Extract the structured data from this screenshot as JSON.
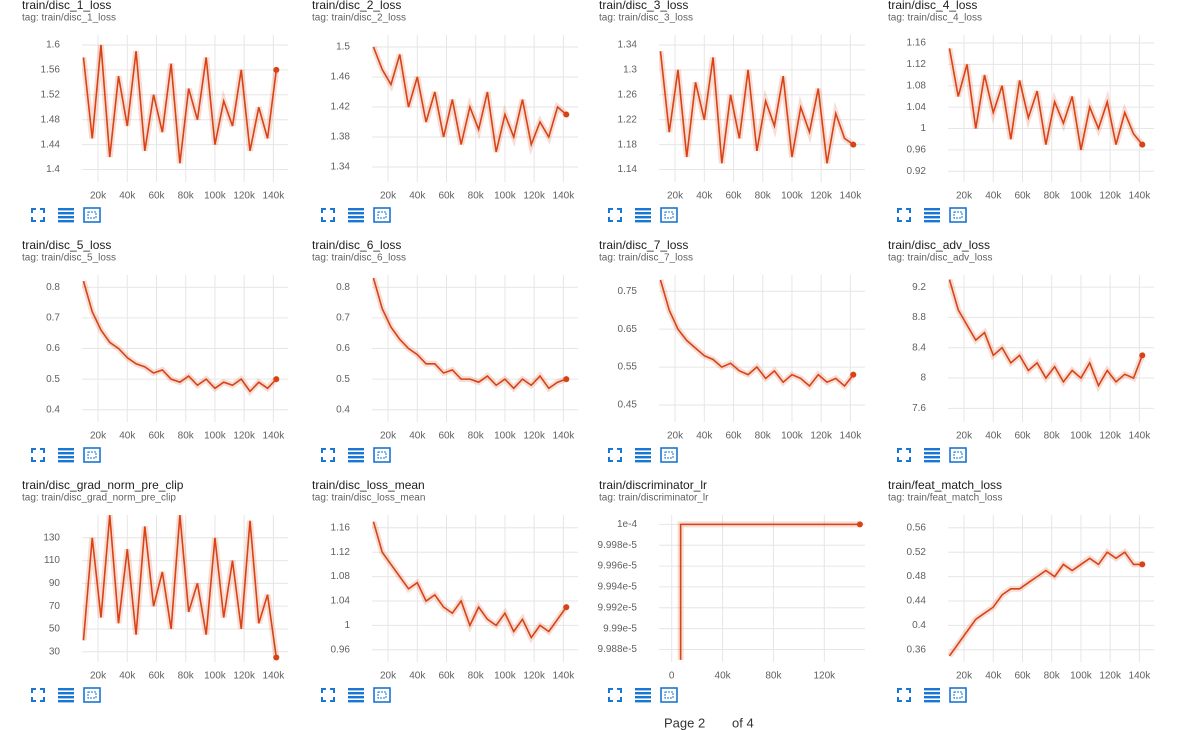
{
  "chart_data": [
    {
      "type": "line",
      "title": "train/disc_1_loss",
      "subtitle": "tag: train/disc_1_loss",
      "color": "#d84315",
      "grid": true,
      "xlim": [
        9000,
        150000
      ],
      "ylim": [
        1.38,
        1.616
      ],
      "xticks": [
        {
          "value": 20000,
          "label": "20k"
        },
        {
          "value": 40000,
          "label": "40k"
        },
        {
          "value": 60000,
          "label": "60k"
        },
        {
          "value": 80000,
          "label": "80k"
        },
        {
          "value": 100000,
          "label": "100k"
        },
        {
          "value": 120000,
          "label": "120k"
        },
        {
          "value": 140000,
          "label": "140k"
        }
      ],
      "yticks": [
        1.4,
        1.44,
        1.48,
        1.52,
        1.56,
        1.6
      ],
      "x": [
        10000,
        16000,
        22000,
        28000,
        34000,
        40000,
        46000,
        52000,
        58000,
        64000,
        70000,
        76000,
        82000,
        88000,
        94000,
        100000,
        106000,
        112000,
        118000,
        124000,
        130000,
        136000,
        142000
      ],
      "values": [
        1.58,
        1.45,
        1.6,
        1.42,
        1.55,
        1.47,
        1.59,
        1.43,
        1.52,
        1.46,
        1.57,
        1.41,
        1.53,
        1.48,
        1.58,
        1.44,
        1.51,
        1.47,
        1.56,
        1.43,
        1.5,
        1.45,
        1.56
      ]
    },
    {
      "type": "line",
      "title": "train/disc_2_loss",
      "subtitle": "tag: train/disc_2_loss",
      "color": "#d84315",
      "grid": true,
      "xlim": [
        9000,
        150000
      ],
      "ylim": [
        1.32,
        1.516
      ],
      "xticks": [
        {
          "value": 20000,
          "label": "20k"
        },
        {
          "value": 40000,
          "label": "40k"
        },
        {
          "value": 60000,
          "label": "60k"
        },
        {
          "value": 80000,
          "label": "80k"
        },
        {
          "value": 100000,
          "label": "100k"
        },
        {
          "value": 120000,
          "label": "120k"
        },
        {
          "value": 140000,
          "label": "140k"
        }
      ],
      "yticks": [
        1.34,
        1.38,
        1.42,
        1.46,
        1.5
      ],
      "x": [
        10000,
        16000,
        22000,
        28000,
        34000,
        40000,
        46000,
        52000,
        58000,
        64000,
        70000,
        76000,
        82000,
        88000,
        94000,
        100000,
        106000,
        112000,
        118000,
        124000,
        130000,
        136000,
        142000
      ],
      "values": [
        1.5,
        1.47,
        1.45,
        1.49,
        1.42,
        1.46,
        1.4,
        1.44,
        1.38,
        1.43,
        1.37,
        1.42,
        1.39,
        1.44,
        1.36,
        1.41,
        1.38,
        1.43,
        1.37,
        1.4,
        1.38,
        1.42,
        1.41
      ]
    },
    {
      "type": "line",
      "title": "train/disc_3_loss",
      "subtitle": "tag: train/disc_3_loss",
      "color": "#d84315",
      "grid": true,
      "xlim": [
        9000,
        150000
      ],
      "ylim": [
        1.12,
        1.356
      ],
      "xticks": [
        {
          "value": 20000,
          "label": "20k"
        },
        {
          "value": 40000,
          "label": "40k"
        },
        {
          "value": 60000,
          "label": "60k"
        },
        {
          "value": 80000,
          "label": "80k"
        },
        {
          "value": 100000,
          "label": "100k"
        },
        {
          "value": 120000,
          "label": "120k"
        },
        {
          "value": 140000,
          "label": "140k"
        }
      ],
      "yticks": [
        1.14,
        1.18,
        1.22,
        1.26,
        1.3,
        1.34
      ],
      "x": [
        10000,
        16000,
        22000,
        28000,
        34000,
        40000,
        46000,
        52000,
        58000,
        64000,
        70000,
        76000,
        82000,
        88000,
        94000,
        100000,
        106000,
        112000,
        118000,
        124000,
        130000,
        136000,
        142000
      ],
      "values": [
        1.33,
        1.2,
        1.3,
        1.16,
        1.28,
        1.22,
        1.32,
        1.15,
        1.26,
        1.19,
        1.3,
        1.17,
        1.25,
        1.21,
        1.29,
        1.16,
        1.24,
        1.2,
        1.27,
        1.15,
        1.23,
        1.19,
        1.18
      ]
    },
    {
      "type": "line",
      "title": "train/disc_4_loss",
      "subtitle": "tag: train/disc_4_loss",
      "color": "#d84315",
      "grid": true,
      "xlim": [
        9000,
        150000
      ],
      "ylim": [
        0.9,
        1.175
      ],
      "xticks": [
        {
          "value": 20000,
          "label": "20k"
        },
        {
          "value": 40000,
          "label": "40k"
        },
        {
          "value": 60000,
          "label": "60k"
        },
        {
          "value": 80000,
          "label": "80k"
        },
        {
          "value": 100000,
          "label": "100k"
        },
        {
          "value": 120000,
          "label": "120k"
        },
        {
          "value": 140000,
          "label": "140k"
        }
      ],
      "yticks": [
        0.92,
        0.96,
        1,
        1.04,
        1.08,
        1.12,
        1.16
      ],
      "x": [
        10000,
        16000,
        22000,
        28000,
        34000,
        40000,
        46000,
        52000,
        58000,
        64000,
        70000,
        76000,
        82000,
        88000,
        94000,
        100000,
        106000,
        112000,
        118000,
        124000,
        130000,
        136000,
        142000
      ],
      "values": [
        1.15,
        1.06,
        1.12,
        1.0,
        1.1,
        1.03,
        1.08,
        0.98,
        1.09,
        1.02,
        1.07,
        0.97,
        1.05,
        1.01,
        1.06,
        0.96,
        1.04,
        1.0,
        1.05,
        0.97,
        1.03,
        0.99,
        0.97
      ]
    },
    {
      "type": "line",
      "title": "train/disc_5_loss",
      "subtitle": "tag: train/disc_5_loss",
      "color": "#d84315",
      "grid": true,
      "xlim": [
        9000,
        150000
      ],
      "ylim": [
        0.36,
        0.84
      ],
      "xticks": [
        {
          "value": 20000,
          "label": "20k"
        },
        {
          "value": 40000,
          "label": "40k"
        },
        {
          "value": 60000,
          "label": "60k"
        },
        {
          "value": 80000,
          "label": "80k"
        },
        {
          "value": 100000,
          "label": "100k"
        },
        {
          "value": 120000,
          "label": "120k"
        },
        {
          "value": 140000,
          "label": "140k"
        }
      ],
      "yticks": [
        0.4,
        0.5,
        0.6,
        0.7,
        0.8
      ],
      "x": [
        10000,
        16000,
        22000,
        28000,
        34000,
        40000,
        46000,
        52000,
        58000,
        64000,
        70000,
        76000,
        82000,
        88000,
        94000,
        100000,
        106000,
        112000,
        118000,
        124000,
        130000,
        136000,
        142000
      ],
      "values": [
        0.82,
        0.72,
        0.66,
        0.62,
        0.6,
        0.57,
        0.55,
        0.54,
        0.52,
        0.53,
        0.5,
        0.49,
        0.51,
        0.48,
        0.5,
        0.47,
        0.49,
        0.48,
        0.5,
        0.46,
        0.49,
        0.47,
        0.5
      ]
    },
    {
      "type": "line",
      "title": "train/disc_6_loss",
      "subtitle": "tag: train/disc_6_loss",
      "color": "#d84315",
      "grid": true,
      "xlim": [
        9000,
        150000
      ],
      "ylim": [
        0.36,
        0.84
      ],
      "xticks": [
        {
          "value": 20000,
          "label": "20k"
        },
        {
          "value": 40000,
          "label": "40k"
        },
        {
          "value": 60000,
          "label": "60k"
        },
        {
          "value": 80000,
          "label": "80k"
        },
        {
          "value": 100000,
          "label": "100k"
        },
        {
          "value": 120000,
          "label": "120k"
        },
        {
          "value": 140000,
          "label": "140k"
        }
      ],
      "yticks": [
        0.4,
        0.5,
        0.6,
        0.7,
        0.8
      ],
      "x": [
        10000,
        16000,
        22000,
        28000,
        34000,
        40000,
        46000,
        52000,
        58000,
        64000,
        70000,
        76000,
        82000,
        88000,
        94000,
        100000,
        106000,
        112000,
        118000,
        124000,
        130000,
        136000,
        142000
      ],
      "values": [
        0.83,
        0.73,
        0.67,
        0.63,
        0.6,
        0.58,
        0.55,
        0.55,
        0.52,
        0.53,
        0.5,
        0.5,
        0.49,
        0.51,
        0.48,
        0.5,
        0.47,
        0.5,
        0.48,
        0.51,
        0.47,
        0.49,
        0.5
      ]
    },
    {
      "type": "line",
      "title": "train/disc_7_loss",
      "subtitle": "tag: train/disc_7_loss",
      "color": "#d84315",
      "grid": true,
      "xlim": [
        9000,
        150000
      ],
      "ylim": [
        0.405,
        0.793
      ],
      "xticks": [
        {
          "value": 20000,
          "label": "20k"
        },
        {
          "value": 40000,
          "label": "40k"
        },
        {
          "value": 60000,
          "label": "60k"
        },
        {
          "value": 80000,
          "label": "80k"
        },
        {
          "value": 100000,
          "label": "100k"
        },
        {
          "value": 120000,
          "label": "120k"
        },
        {
          "value": 140000,
          "label": "140k"
        }
      ],
      "yticks": [
        0.45,
        0.55,
        0.65,
        0.75
      ],
      "x": [
        10000,
        16000,
        22000,
        28000,
        34000,
        40000,
        46000,
        52000,
        58000,
        64000,
        70000,
        76000,
        82000,
        88000,
        94000,
        100000,
        106000,
        112000,
        118000,
        124000,
        130000,
        136000,
        142000
      ],
      "values": [
        0.78,
        0.7,
        0.65,
        0.62,
        0.6,
        0.58,
        0.57,
        0.55,
        0.56,
        0.54,
        0.53,
        0.55,
        0.52,
        0.54,
        0.51,
        0.53,
        0.52,
        0.5,
        0.53,
        0.51,
        0.52,
        0.5,
        0.53
      ]
    },
    {
      "type": "line",
      "title": "train/disc_adv_loss",
      "subtitle": "tag: train/disc_adv_loss",
      "color": "#d84315",
      "grid": true,
      "xlim": [
        9000,
        150000
      ],
      "ylim": [
        7.42,
        9.36
      ],
      "xticks": [
        {
          "value": 20000,
          "label": "20k"
        },
        {
          "value": 40000,
          "label": "40k"
        },
        {
          "value": 60000,
          "label": "60k"
        },
        {
          "value": 80000,
          "label": "80k"
        },
        {
          "value": 100000,
          "label": "100k"
        },
        {
          "value": 120000,
          "label": "120k"
        },
        {
          "value": 140000,
          "label": "140k"
        }
      ],
      "yticks": [
        7.6,
        8,
        8.4,
        8.8,
        9.2
      ],
      "x": [
        10000,
        16000,
        22000,
        28000,
        34000,
        40000,
        46000,
        52000,
        58000,
        64000,
        70000,
        76000,
        82000,
        88000,
        94000,
        100000,
        106000,
        112000,
        118000,
        124000,
        130000,
        136000,
        142000
      ],
      "values": [
        9.3,
        8.9,
        8.7,
        8.5,
        8.6,
        8.3,
        8.4,
        8.2,
        8.3,
        8.1,
        8.2,
        8.0,
        8.15,
        7.95,
        8.1,
        8.0,
        8.2,
        7.9,
        8.1,
        7.95,
        8.05,
        8.0,
        8.3
      ]
    },
    {
      "type": "line",
      "title": "train/disc_grad_norm_pre_clip",
      "subtitle": "tag: train/disc_grad_norm_pre_clip",
      "color": "#d84315",
      "grid": true,
      "xlim": [
        9000,
        150000
      ],
      "ylim": [
        21,
        150
      ],
      "xticks": [
        {
          "value": 20000,
          "label": "20k"
        },
        {
          "value": 40000,
          "label": "40k"
        },
        {
          "value": 60000,
          "label": "60k"
        },
        {
          "value": 80000,
          "label": "80k"
        },
        {
          "value": 100000,
          "label": "100k"
        },
        {
          "value": 120000,
          "label": "120k"
        },
        {
          "value": 140000,
          "label": "140k"
        }
      ],
      "yticks": [
        30,
        50,
        70,
        90,
        110,
        130
      ],
      "x": [
        10000,
        16000,
        22000,
        28000,
        34000,
        40000,
        46000,
        52000,
        58000,
        64000,
        70000,
        76000,
        82000,
        88000,
        94000,
        100000,
        106000,
        112000,
        118000,
        124000,
        130000,
        136000,
        142000
      ],
      "values": [
        40,
        130,
        60,
        150,
        55,
        120,
        45,
        140,
        70,
        100,
        50,
        150,
        65,
        90,
        45,
        130,
        60,
        110,
        50,
        145,
        55,
        80,
        25
      ]
    },
    {
      "type": "line",
      "title": "train/disc_loss_mean",
      "subtitle": "tag: train/disc_loss_mean",
      "color": "#d84315",
      "grid": true,
      "xlim": [
        9000,
        150000
      ],
      "ylim": [
        0.94,
        1.181
      ],
      "xticks": [
        {
          "value": 20000,
          "label": "20k"
        },
        {
          "value": 40000,
          "label": "40k"
        },
        {
          "value": 60000,
          "label": "60k"
        },
        {
          "value": 80000,
          "label": "80k"
        },
        {
          "value": 100000,
          "label": "100k"
        },
        {
          "value": 120000,
          "label": "120k"
        },
        {
          "value": 140000,
          "label": "140k"
        }
      ],
      "yticks": [
        0.96,
        1,
        1.04,
        1.08,
        1.12,
        1.16
      ],
      "x": [
        10000,
        16000,
        22000,
        28000,
        34000,
        40000,
        46000,
        52000,
        58000,
        64000,
        70000,
        76000,
        82000,
        88000,
        94000,
        100000,
        106000,
        112000,
        118000,
        124000,
        130000,
        136000,
        142000
      ],
      "values": [
        1.17,
        1.12,
        1.1,
        1.08,
        1.06,
        1.07,
        1.04,
        1.05,
        1.03,
        1.02,
        1.04,
        1.0,
        1.03,
        1.01,
        1.0,
        1.02,
        0.99,
        1.01,
        0.98,
        1.0,
        0.99,
        1.01,
        1.03
      ]
    },
    {
      "type": "line",
      "title": "train/discriminator_lr",
      "subtitle": "tag: train/discriminator_lr",
      "color": "#d84315",
      "grid": true,
      "xlim": [
        -10000,
        152000
      ],
      "ylim": [
        9.9868e-05,
        0.000100009
      ],
      "xticks": [
        0,
        {
          "value": 40000,
          "label": "40k"
        },
        {
          "value": 80000,
          "label": "80k"
        },
        {
          "value": 120000,
          "label": "120k"
        }
      ],
      "yticks": [
        {
          "value": 9.988e-05,
          "label": "9.988e-5"
        },
        {
          "value": 9.99e-05,
          "label": "9.99e-5"
        },
        {
          "value": 9.992e-05,
          "label": "9.992e-5"
        },
        {
          "value": 9.994e-05,
          "label": "9.994e-5"
        },
        {
          "value": 9.996e-05,
          "label": "9.996e-5"
        },
        {
          "value": 9.998e-05,
          "label": "9.998e-5"
        },
        {
          "value": 0.0001,
          "label": "1e-4"
        }
      ],
      "x": [
        7000,
        7000,
        148000
      ],
      "values": [
        9.987e-05,
        0.0001,
        0.0001
      ]
    },
    {
      "type": "line",
      "title": "train/feat_match_loss",
      "subtitle": "tag: train/feat_match_loss",
      "color": "#d84315",
      "grid": true,
      "xlim": [
        9000,
        150000
      ],
      "ylim": [
        0.34,
        0.581
      ],
      "xticks": [
        {
          "value": 20000,
          "label": "20k"
        },
        {
          "value": 40000,
          "label": "40k"
        },
        {
          "value": 60000,
          "label": "60k"
        },
        {
          "value": 80000,
          "label": "80k"
        },
        {
          "value": 100000,
          "label": "100k"
        },
        {
          "value": 120000,
          "label": "120k"
        },
        {
          "value": 140000,
          "label": "140k"
        }
      ],
      "yticks": [
        0.36,
        0.4,
        0.44,
        0.48,
        0.52,
        0.56
      ],
      "x": [
        10000,
        16000,
        22000,
        28000,
        34000,
        40000,
        46000,
        52000,
        58000,
        64000,
        70000,
        76000,
        82000,
        88000,
        94000,
        100000,
        106000,
        112000,
        118000,
        124000,
        130000,
        136000,
        142000
      ],
      "values": [
        0.35,
        0.37,
        0.39,
        0.41,
        0.42,
        0.43,
        0.45,
        0.46,
        0.46,
        0.47,
        0.48,
        0.49,
        0.48,
        0.5,
        0.49,
        0.5,
        0.51,
        0.5,
        0.52,
        0.51,
        0.52,
        0.5,
        0.5
      ]
    }
  ],
  "pagination": {
    "page": "Page 2",
    "total": "of 4"
  }
}
